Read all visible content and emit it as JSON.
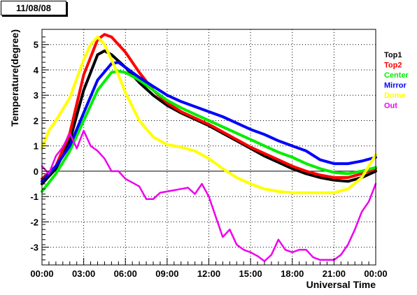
{
  "date_label": "11/08/08",
  "chart_data": {
    "type": "line",
    "title": "",
    "xlabel": "Universal Time",
    "ylabel": "Temperature(degree)",
    "xlim": [
      0,
      24
    ],
    "ylim": [
      -3.7,
      5.6
    ],
    "grid": true,
    "legend_position": "right",
    "x_tick_labels": [
      "00:00",
      "03:00",
      "06:00",
      "09:00",
      "12:00",
      "15:00",
      "18:00",
      "21:00",
      "00:00"
    ],
    "y_tick_labels": [
      "-3",
      "-2",
      "-1",
      "0",
      "1",
      "2",
      "3",
      "4",
      "5"
    ],
    "y_tick_values": [
      -3,
      -2,
      -1,
      0,
      1,
      2,
      3,
      4,
      5
    ],
    "x_tick_values": [
      0,
      3,
      6,
      9,
      12,
      15,
      18,
      21,
      24
    ],
    "series": [
      {
        "name": "Top1",
        "color": "#000000",
        "x": [
          0,
          1,
          2,
          3,
          4,
          4.5,
          5,
          6,
          7,
          8,
          9,
          10,
          11,
          12,
          13,
          14,
          15,
          16,
          17,
          18,
          19,
          20,
          21,
          22,
          23,
          24
        ],
        "y": [
          -0.5,
          0.1,
          1.2,
          3.2,
          4.6,
          4.75,
          4.6,
          4.1,
          3.5,
          3.0,
          2.6,
          2.3,
          2.05,
          1.8,
          1.5,
          1.2,
          0.9,
          0.6,
          0.35,
          0.1,
          -0.1,
          -0.25,
          -0.35,
          -0.4,
          -0.25,
          0.0
        ]
      },
      {
        "name": "Top2",
        "color": "#ff0000",
        "x": [
          0,
          1,
          2,
          3,
          4,
          4.5,
          5,
          6,
          7,
          8,
          9,
          10,
          11,
          12,
          13,
          14,
          15,
          16,
          17,
          18,
          19,
          20,
          21,
          22,
          23,
          24
        ],
        "y": [
          -0.3,
          0.2,
          1.5,
          3.8,
          5.2,
          5.4,
          5.3,
          4.7,
          3.9,
          3.2,
          2.7,
          2.35,
          2.1,
          1.85,
          1.55,
          1.25,
          0.95,
          0.7,
          0.45,
          0.2,
          0.0,
          -0.15,
          -0.25,
          -0.25,
          -0.1,
          0.1
        ]
      },
      {
        "name": "Center",
        "color": "#00ee00",
        "x": [
          0,
          1,
          2,
          3,
          4,
          5,
          5.5,
          6,
          7,
          8,
          9,
          10,
          11,
          12,
          13,
          14,
          15,
          16,
          17,
          18,
          19,
          20,
          21,
          22,
          23,
          24
        ],
        "y": [
          -0.8,
          -0.1,
          0.8,
          2.0,
          3.2,
          3.9,
          3.95,
          3.9,
          3.6,
          3.2,
          2.8,
          2.5,
          2.25,
          2.0,
          1.75,
          1.5,
          1.25,
          1.0,
          0.75,
          0.55,
          0.3,
          0.1,
          -0.05,
          -0.1,
          0.0,
          0.15
        ]
      },
      {
        "name": "Mirror",
        "color": "#0000ff",
        "x": [
          0,
          1,
          2,
          3,
          4,
          5,
          5.5,
          6,
          7,
          8,
          9,
          10,
          11,
          12,
          13,
          14,
          15,
          16,
          17,
          18,
          19,
          20,
          21,
          22,
          23,
          24
        ],
        "y": [
          -0.4,
          0.2,
          1.0,
          2.3,
          3.6,
          4.25,
          4.3,
          4.1,
          3.7,
          3.35,
          3.0,
          2.75,
          2.55,
          2.35,
          2.15,
          1.9,
          1.65,
          1.45,
          1.2,
          1.0,
          0.8,
          0.45,
          0.3,
          0.3,
          0.4,
          0.55
        ]
      },
      {
        "name": "Dome",
        "color": "#ffff00",
        "x": [
          0,
          0.5,
          1,
          2,
          3,
          3.5,
          4,
          4.5,
          5,
          5.5,
          6,
          7,
          8,
          9,
          10,
          11,
          12,
          13,
          14,
          15,
          16,
          17,
          18,
          19,
          20,
          21,
          22,
          23,
          24
        ],
        "y": [
          0.9,
          1.6,
          2.0,
          2.9,
          4.4,
          5.0,
          5.3,
          5.0,
          4.4,
          3.8,
          3.1,
          2.0,
          1.35,
          1.05,
          0.95,
          0.8,
          0.5,
          0.1,
          -0.25,
          -0.5,
          -0.7,
          -0.8,
          -0.85,
          -0.85,
          -0.85,
          -0.85,
          -0.7,
          -0.25,
          0.65
        ]
      },
      {
        "name": "Out",
        "color": "#ee00ee",
        "x": [
          0,
          0.5,
          1,
          1.5,
          2,
          2.5,
          3,
          3.5,
          4,
          4.5,
          5,
          5.5,
          6,
          6.5,
          7,
          7.5,
          8,
          8.5,
          9,
          9.5,
          10,
          10.5,
          11,
          11.5,
          12,
          12.5,
          13,
          13.5,
          14,
          14.5,
          15,
          15.5,
          16,
          16.5,
          17,
          17.5,
          18,
          18.5,
          19,
          19.5,
          20,
          20.5,
          21,
          21.5,
          22,
          22.5,
          23,
          23.5,
          24
        ],
        "y": [
          0.2,
          -0.1,
          0.6,
          0.95,
          1.5,
          0.9,
          1.6,
          1.0,
          0.8,
          0.5,
          0.0,
          0.0,
          -0.3,
          -0.45,
          -0.6,
          -1.1,
          -1.1,
          -0.85,
          -0.8,
          -0.75,
          -0.7,
          -0.65,
          -0.9,
          -0.5,
          -1.0,
          -1.8,
          -2.6,
          -2.3,
          -2.9,
          -3.1,
          -3.2,
          -3.35,
          -3.55,
          -3.3,
          -2.7,
          -3.1,
          -3.2,
          -3.1,
          -3.1,
          -3.4,
          -3.5,
          -3.5,
          -3.5,
          -3.3,
          -2.9,
          -2.3,
          -1.6,
          -1.2,
          -0.5
        ]
      }
    ]
  }
}
